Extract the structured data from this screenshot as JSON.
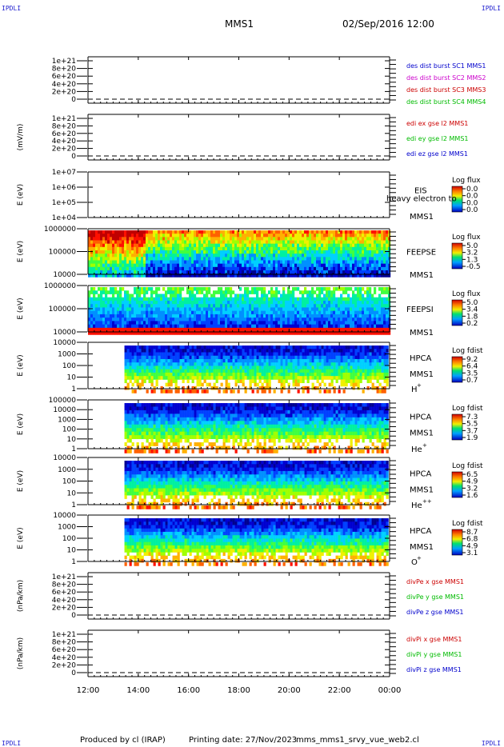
{
  "header": {
    "corner_label": "IPDLI",
    "spacecraft": "MMS1",
    "date_time": "02/Sep/2016 12:00"
  },
  "footer": {
    "produced_by": "Produced by cl (IRAP)",
    "printing_date": "Printing date: 27/Nov/2023",
    "script_name": "mms_mms1_srvy_vue_web2.cl"
  },
  "colors": {
    "mms1": "#0000cc",
    "mms2": "#cc00cc",
    "mms3": "#cc0000",
    "mms4": "#00bb00",
    "x": "#cc0000",
    "y": "#00bb00",
    "z": "#0000cc"
  },
  "chart_data": [
    {
      "type": "line",
      "ylabel": "",
      "yticks": [
        "1e+21",
        "8e+20",
        "6e+20",
        "4e+20",
        "2e+20",
        "0"
      ],
      "ylim": [
        0,
        1e+21
      ],
      "series": [
        {
          "name": "des dist burst SC1 MMS1",
          "color": "mms1",
          "values": []
        },
        {
          "name": "des dist burst SC2 MMS2",
          "color": "mms2",
          "values": []
        },
        {
          "name": "des dist burst SC3 MMS3",
          "color": "mms3",
          "values": []
        },
        {
          "name": "des dist burst SC4 MMS4",
          "color": "mms4",
          "values": []
        }
      ]
    },
    {
      "type": "line",
      "ylabel": "(mV/m)",
      "yticks": [
        "1e+21",
        "8e+20",
        "6e+20",
        "4e+20",
        "2e+20",
        "0"
      ],
      "ylim": [
        0,
        1e+21
      ],
      "series": [
        {
          "name": "edi ex gse l2 MMS1",
          "color": "x",
          "values": []
        },
        {
          "name": "edi ey gse l2 MMS1",
          "color": "y",
          "values": []
        },
        {
          "name": "edi ez gse l2 MMS1",
          "color": "z",
          "values": []
        }
      ]
    },
    {
      "type": "heatmap",
      "ylabel": "E (eV)",
      "yticks": [
        "1e+07",
        "1e+06",
        "1e+05",
        "1e+04"
      ],
      "instrument": [
        "EIS",
        "MMS1"
      ],
      "overlay_text": "heavy electron to",
      "colorbar_title": "Log flux",
      "colorbar_ticks": [
        "0.0",
        "0.0",
        "0.0",
        "0.0"
      ],
      "coverage": []
    },
    {
      "type": "heatmap",
      "ylabel": "E (eV)",
      "yticks": [
        "1000000",
        "100000",
        "10000"
      ],
      "instrument": [
        "FEEPSE",
        "MMS1"
      ],
      "colorbar_title": "Log flux",
      "colorbar_ticks": [
        "5.0",
        "3.2",
        "1.3",
        "-0.5"
      ],
      "coverage": [
        [
          12.0,
          24.0
        ]
      ]
    },
    {
      "type": "heatmap",
      "ylabel": "E (eV)",
      "yticks": [
        "1000000",
        "100000",
        "10000"
      ],
      "instrument": [
        "FEEPSI",
        "MMS1"
      ],
      "colorbar_title": "Log flux",
      "colorbar_ticks": [
        "5.0",
        "3.4",
        "1.8",
        "0.2"
      ],
      "coverage": [
        [
          12.0,
          24.0
        ]
      ]
    },
    {
      "type": "heatmap",
      "ylabel": "E (eV)",
      "yticks": [
        "10000",
        "1000",
        "100",
        "10",
        "1"
      ],
      "instrument": [
        "HPCA",
        "MMS1"
      ],
      "species": "H",
      "species_charge": "+",
      "colorbar_title": "Log fdist",
      "colorbar_ticks": [
        "9.2",
        "6.4",
        "3.5",
        "0.7"
      ],
      "coverage": [
        [
          13.45,
          24.0
        ]
      ]
    },
    {
      "type": "heatmap",
      "ylabel": "E (eV)",
      "yticks": [
        "100000",
        "10000",
        "1000",
        "100",
        "10",
        "1"
      ],
      "instrument": [
        "HPCA",
        "MMS1"
      ],
      "species": "He",
      "species_charge": "+",
      "colorbar_title": "Log fdist",
      "colorbar_ticks": [
        "7.3",
        "5.5",
        "3.7",
        "1.9"
      ],
      "coverage": [
        [
          13.45,
          24.0
        ]
      ]
    },
    {
      "type": "heatmap",
      "ylabel": "E (eV)",
      "yticks": [
        "10000",
        "1000",
        "100",
        "10",
        "1"
      ],
      "instrument": [
        "HPCA",
        "MMS1"
      ],
      "species": "He",
      "species_charge": "++",
      "colorbar_title": "Log fdist",
      "colorbar_ticks": [
        "6.5",
        "4.9",
        "3.2",
        "1.6"
      ],
      "coverage": [
        [
          13.45,
          24.0
        ]
      ]
    },
    {
      "type": "heatmap",
      "ylabel": "E (eV)",
      "yticks": [
        "10000",
        "1000",
        "100",
        "10",
        "1"
      ],
      "instrument": [
        "HPCA",
        "MMS1"
      ],
      "species": "O",
      "species_charge": "+",
      "colorbar_title": "Log fdist",
      "colorbar_ticks": [
        "8.7",
        "6.8",
        "4.9",
        "3.1"
      ],
      "coverage": [
        [
          13.45,
          24.0
        ]
      ]
    },
    {
      "type": "line",
      "ylabel": "(nPa/km)",
      "yticks": [
        "1e+21",
        "8e+20",
        "6e+20",
        "4e+20",
        "2e+20",
        "0"
      ],
      "ylim": [
        0,
        1e+21
      ],
      "series": [
        {
          "name": "divPe x gse MMS1",
          "color": "x",
          "values": []
        },
        {
          "name": "divPe y gse MMS1",
          "color": "y",
          "values": []
        },
        {
          "name": "divPe z gse MMS1",
          "color": "z",
          "values": []
        }
      ]
    },
    {
      "type": "line",
      "ylabel": "(nPa/km)",
      "yticks": [
        "1e+21",
        "8e+20",
        "6e+20",
        "4e+20",
        "2e+20",
        "0"
      ],
      "ylim": [
        0,
        1e+21
      ],
      "series": [
        {
          "name": "divPi x gse MMS1",
          "color": "x",
          "values": []
        },
        {
          "name": "divPi y gse MMS1",
          "color": "y",
          "values": []
        },
        {
          "name": "divPi z gse MMS1",
          "color": "z",
          "values": []
        }
      ]
    }
  ],
  "time_axis": {
    "ticks": [
      "12:00",
      "14:00",
      "16:00",
      "18:00",
      "20:00",
      "22:00",
      "00:00"
    ],
    "range_hours": [
      12,
      24
    ]
  }
}
